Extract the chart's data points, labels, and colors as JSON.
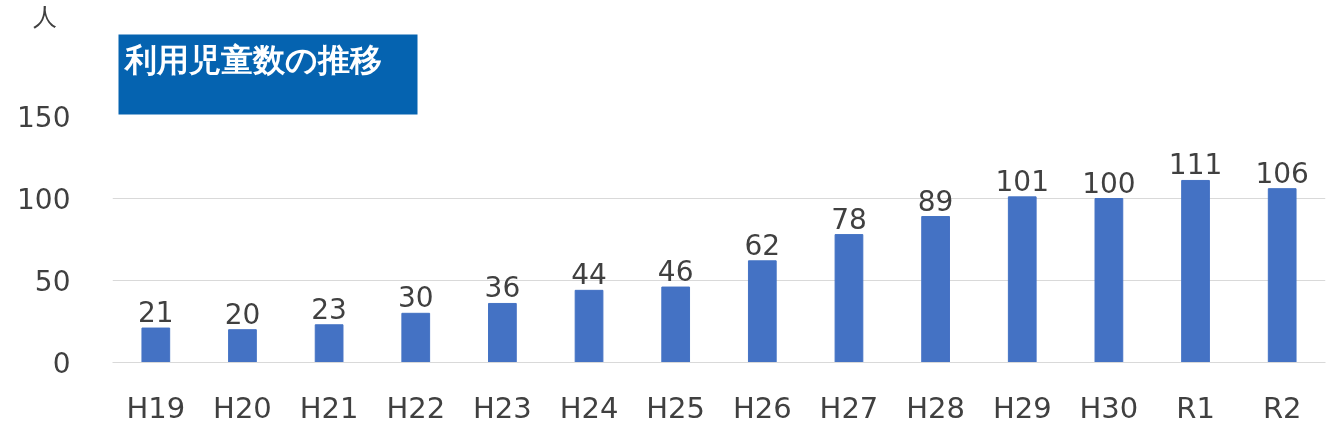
{
  "chart_data": {
    "type": "bar",
    "title": "利用児童数の推移",
    "ylabel": "人",
    "categories": [
      "H19",
      "H20",
      "H21",
      "H22",
      "H23",
      "H24",
      "H25",
      "H26",
      "H27",
      "H28",
      "H29",
      "H30",
      "R1",
      "R2"
    ],
    "values": [
      21,
      20,
      23,
      30,
      36,
      44,
      46,
      62,
      78,
      89,
      101,
      100,
      111,
      106
    ],
    "color": "#4472c4",
    "ylim": [
      0,
      150
    ],
    "yticks": [
      0,
      50,
      100,
      150
    ],
    "grid": "y",
    "data_labels": true
  }
}
